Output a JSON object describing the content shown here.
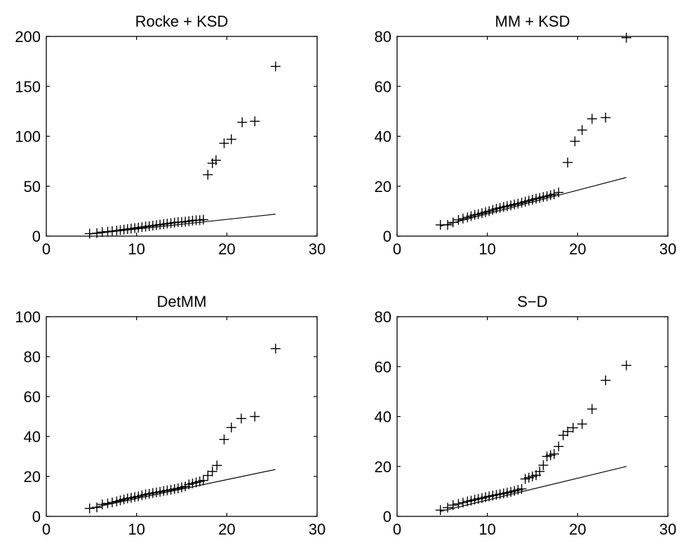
{
  "chart_data": [
    {
      "type": "scatter",
      "title": "Rocke + KSD",
      "xlim": [
        0,
        30
      ],
      "ylim": [
        0,
        200
      ],
      "xticks": [
        0,
        10,
        20,
        30
      ],
      "yticks": [
        0,
        50,
        100,
        150,
        200
      ],
      "grid": false,
      "points": [
        [
          4.8,
          2.5
        ],
        [
          5.6,
          3
        ],
        [
          6.2,
          4
        ],
        [
          6.8,
          4.5
        ],
        [
          7.3,
          5
        ],
        [
          7.8,
          5.5
        ],
        [
          8.2,
          6
        ],
        [
          8.6,
          6.5
        ],
        [
          9.0,
          7
        ],
        [
          9.4,
          7.5
        ],
        [
          9.8,
          8
        ],
        [
          10.2,
          8.5
        ],
        [
          10.6,
          9
        ],
        [
          11.0,
          9.5
        ],
        [
          11.4,
          10
        ],
        [
          11.8,
          10.5
        ],
        [
          12.2,
          11
        ],
        [
          12.6,
          11.5
        ],
        [
          13.0,
          12
        ],
        [
          13.4,
          12.5
        ],
        [
          13.8,
          13
        ],
        [
          14.2,
          13.5
        ],
        [
          14.6,
          14
        ],
        [
          15.0,
          14
        ],
        [
          15.4,
          14.5
        ],
        [
          15.8,
          15
        ],
        [
          16.2,
          15.5
        ],
        [
          16.6,
          16
        ],
        [
          17.0,
          16
        ],
        [
          17.4,
          16.5
        ],
        [
          17.9,
          61.5
        ],
        [
          18.4,
          73
        ],
        [
          18.8,
          76
        ],
        [
          19.7,
          93
        ],
        [
          20.5,
          97
        ],
        [
          21.7,
          114
        ],
        [
          23.1,
          115
        ],
        [
          25.4,
          170
        ]
      ],
      "reference_line": {
        "x": [
          4.8,
          25.4
        ],
        "y": [
          2.0,
          22.0
        ]
      }
    },
    {
      "type": "scatter",
      "title": "MM + KSD",
      "xlim": [
        0,
        30
      ],
      "ylim": [
        0,
        80
      ],
      "xticks": [
        0,
        10,
        20,
        30
      ],
      "yticks": [
        0,
        20,
        40,
        60,
        80
      ],
      "grid": false,
      "points": [
        [
          4.8,
          4.5
        ],
        [
          5.6,
          4.5
        ],
        [
          6.2,
          5.5
        ],
        [
          6.8,
          6.5
        ],
        [
          7.3,
          7
        ],
        [
          7.8,
          7.5
        ],
        [
          8.2,
          8
        ],
        [
          8.6,
          8.5
        ],
        [
          9.0,
          8.8
        ],
        [
          9.4,
          9.2
        ],
        [
          9.8,
          9.6
        ],
        [
          10.2,
          10
        ],
        [
          10.6,
          10.5
        ],
        [
          11.0,
          11
        ],
        [
          11.4,
          11.3
        ],
        [
          11.8,
          11.7
        ],
        [
          12.2,
          12
        ],
        [
          12.6,
          12.3
        ],
        [
          13.0,
          12.7
        ],
        [
          13.4,
          13
        ],
        [
          13.8,
          13.4
        ],
        [
          14.2,
          13.8
        ],
        [
          14.6,
          14.2
        ],
        [
          15.0,
          14.6
        ],
        [
          15.4,
          15
        ],
        [
          15.8,
          15.3
        ],
        [
          16.2,
          15.7
        ],
        [
          16.6,
          16
        ],
        [
          17.0,
          16.4
        ],
        [
          17.4,
          16.8
        ],
        [
          17.9,
          17.5
        ],
        [
          18.9,
          29.5
        ],
        [
          19.7,
          38
        ],
        [
          20.5,
          42.5
        ],
        [
          21.6,
          47
        ],
        [
          23.1,
          47.5
        ],
        [
          25.4,
          79.5
        ]
      ],
      "reference_line": {
        "x": [
          4.8,
          25.4
        ],
        "y": [
          4.0,
          23.5
        ]
      }
    },
    {
      "type": "scatter",
      "title": "DetMM",
      "xlim": [
        0,
        30
      ],
      "ylim": [
        0,
        100
      ],
      "xticks": [
        0,
        10,
        20,
        30
      ],
      "yticks": [
        0,
        20,
        40,
        60,
        80,
        100
      ],
      "grid": false,
      "points": [
        [
          4.8,
          4
        ],
        [
          5.6,
          4.5
        ],
        [
          6.2,
          6
        ],
        [
          6.8,
          6.5
        ],
        [
          7.3,
          7
        ],
        [
          7.8,
          7.5
        ],
        [
          8.2,
          8
        ],
        [
          8.6,
          8.5
        ],
        [
          9.0,
          9
        ],
        [
          9.4,
          9.3
        ],
        [
          9.8,
          9.7
        ],
        [
          10.2,
          10
        ],
        [
          10.6,
          10.5
        ],
        [
          11.0,
          11
        ],
        [
          11.4,
          11.3
        ],
        [
          11.8,
          11.7
        ],
        [
          12.2,
          12
        ],
        [
          12.6,
          12.3
        ],
        [
          13.0,
          12.7
        ],
        [
          13.4,
          13
        ],
        [
          13.8,
          13.3
        ],
        [
          14.2,
          13.7
        ],
        [
          14.6,
          14
        ],
        [
          15.0,
          14.5
        ],
        [
          15.4,
          15
        ],
        [
          15.8,
          16
        ],
        [
          16.2,
          16.5
        ],
        [
          16.6,
          17
        ],
        [
          17.0,
          17.5
        ],
        [
          17.4,
          18
        ],
        [
          17.9,
          20.5
        ],
        [
          18.4,
          22.5
        ],
        [
          18.9,
          25.5
        ],
        [
          19.7,
          38.5
        ],
        [
          20.5,
          44.5
        ],
        [
          21.6,
          49
        ],
        [
          23.1,
          50
        ],
        [
          25.4,
          84
        ]
      ],
      "reference_line": {
        "x": [
          4.8,
          25.4
        ],
        "y": [
          4.0,
          23.5
        ]
      }
    },
    {
      "type": "scatter",
      "title": "S−D",
      "xlim": [
        0,
        30
      ],
      "ylim": [
        0,
        80
      ],
      "xticks": [
        0,
        10,
        20,
        30
      ],
      "yticks": [
        0,
        20,
        40,
        60,
        80
      ],
      "grid": false,
      "points": [
        [
          4.8,
          2.5
        ],
        [
          5.6,
          3.5
        ],
        [
          6.2,
          4.5
        ],
        [
          6.8,
          5
        ],
        [
          7.3,
          5.5
        ],
        [
          7.8,
          6
        ],
        [
          8.2,
          6.3
        ],
        [
          8.6,
          6.7
        ],
        [
          9.0,
          7
        ],
        [
          9.4,
          7.3
        ],
        [
          9.8,
          7.7
        ],
        [
          10.2,
          8
        ],
        [
          10.6,
          8.3
        ],
        [
          11.0,
          8.6
        ],
        [
          11.4,
          8.9
        ],
        [
          11.8,
          9.2
        ],
        [
          12.2,
          9.5
        ],
        [
          12.6,
          9.8
        ],
        [
          13.0,
          10.2
        ],
        [
          13.4,
          10.6
        ],
        [
          13.8,
          11
        ],
        [
          14.2,
          15
        ],
        [
          14.6,
          15.5
        ],
        [
          15.0,
          16
        ],
        [
          15.4,
          16.5
        ],
        [
          15.8,
          18
        ],
        [
          16.2,
          20.5
        ],
        [
          16.6,
          24
        ],
        [
          17.0,
          24.5
        ],
        [
          17.4,
          25
        ],
        [
          17.9,
          28
        ],
        [
          18.4,
          32.5
        ],
        [
          18.9,
          34
        ],
        [
          19.5,
          35.5
        ],
        [
          20.5,
          37
        ],
        [
          21.6,
          43
        ],
        [
          23.1,
          54.5
        ],
        [
          25.4,
          60.5
        ]
      ],
      "reference_line": {
        "x": [
          4.8,
          25.4
        ],
        "y": [
          2.0,
          20.0
        ]
      }
    }
  ]
}
